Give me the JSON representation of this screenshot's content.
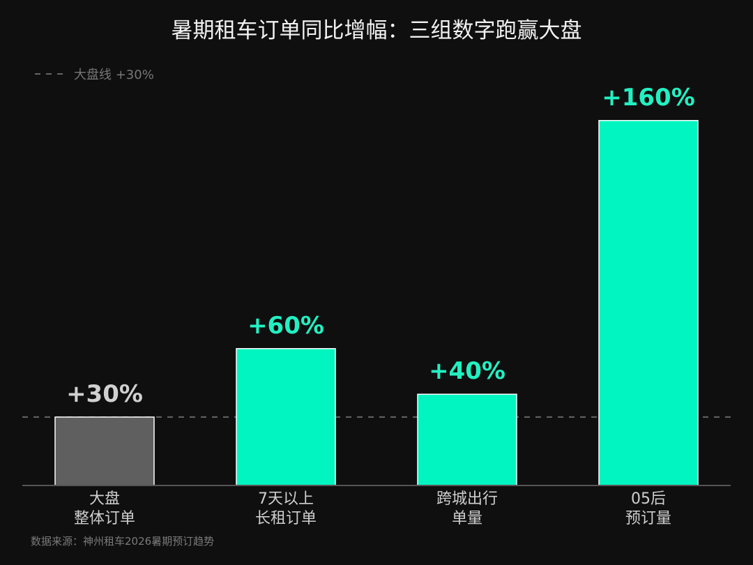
{
  "chart_data": {
    "type": "bar",
    "title": "暑期租车订单同比增幅：三组数字跑赢大盘",
    "categories": [
      [
        "大盘",
        "整体订单"
      ],
      [
        "7天以上",
        "长租订单"
      ],
      [
        "跨城出行",
        "单量"
      ],
      [
        "05后",
        "预订量"
      ]
    ],
    "values": [
      30,
      60,
      40,
      160
    ],
    "value_labels": [
      "+30%",
      "+60%",
      "+40%",
      "+160%"
    ],
    "ylim": [
      0,
      175
    ],
    "reference_line": {
      "value": 30,
      "label": "大盘线 +30%"
    },
    "colors": {
      "baseline_bar": "#5f5f5f",
      "highlight_bar": "#00f5c0",
      "baseline_label": "#d0d0d0",
      "highlight_label": "#22f0c2",
      "reference_line": "#666666",
      "axis": "#555555",
      "background": "#0f0f0f"
    },
    "source": "数据来源：神州租车2026暑期预订趋势"
  }
}
